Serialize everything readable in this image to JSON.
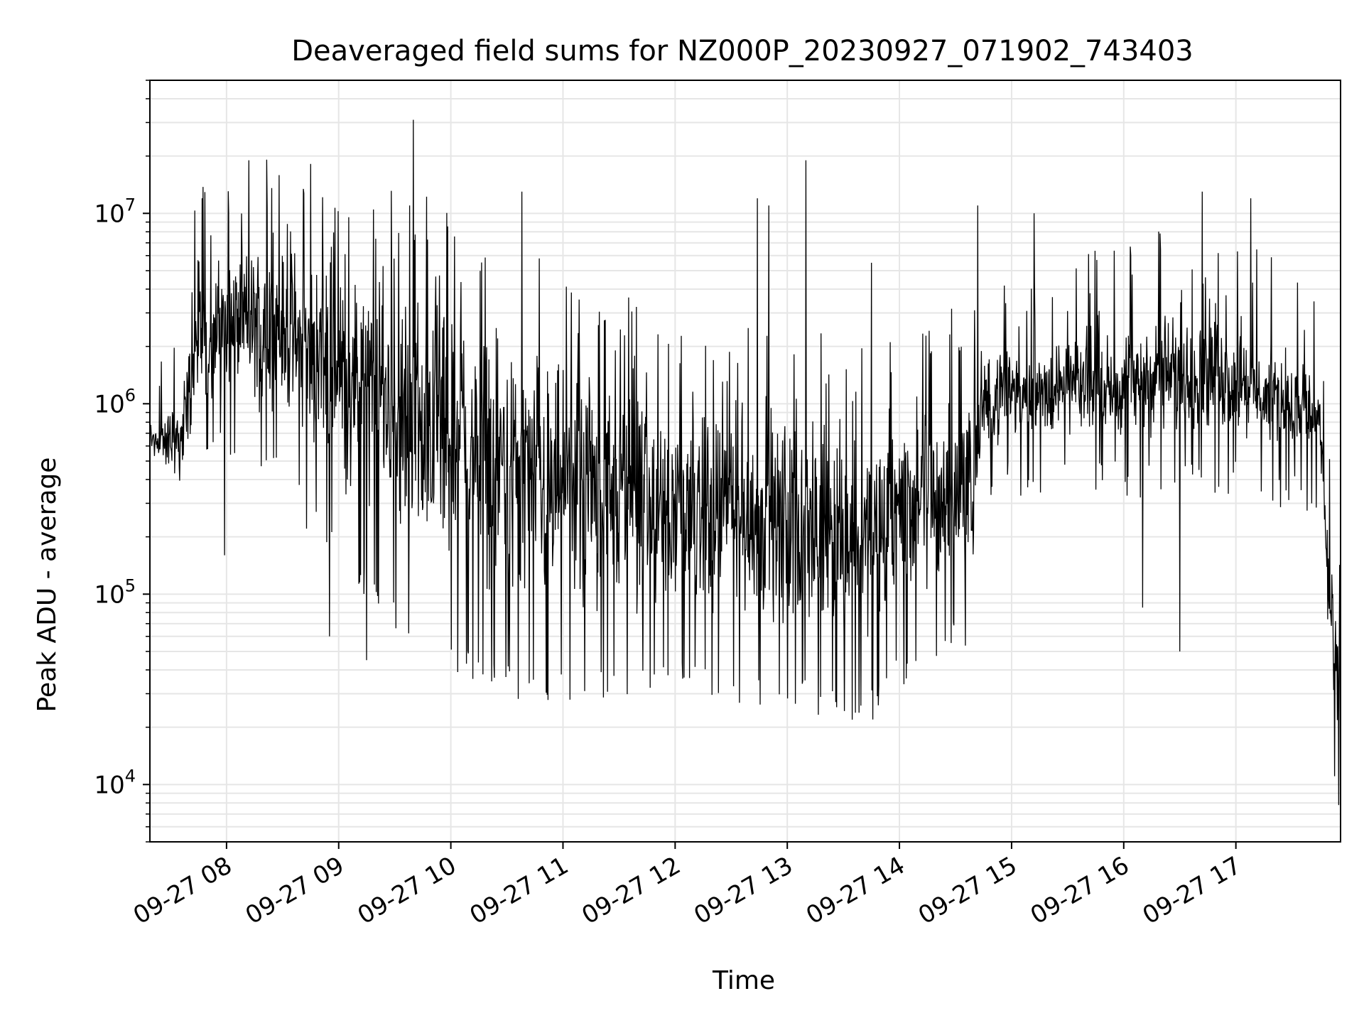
{
  "chart_data": {
    "type": "line",
    "title": "Deaveraged field sums for NZ000P_20230927_071902_743403",
    "xlabel": "Time",
    "ylabel": "Peak ADU - average",
    "yscale": "log",
    "ylim": [
      5000,
      50000000
    ],
    "xlim": [
      "2023-09-27 07:19",
      "2023-09-27 17:56"
    ],
    "grid": true,
    "line_color": "#000000",
    "grid_color": "#e6e6e6",
    "x_ticks": [
      {
        "value": "2023-09-27 08:00",
        "label": "09-27 08"
      },
      {
        "value": "2023-09-27 09:00",
        "label": "09-27 09"
      },
      {
        "value": "2023-09-27 10:00",
        "label": "09-27 10"
      },
      {
        "value": "2023-09-27 11:00",
        "label": "09-27 11"
      },
      {
        "value": "2023-09-27 12:00",
        "label": "09-27 12"
      },
      {
        "value": "2023-09-27 13:00",
        "label": "09-27 13"
      },
      {
        "value": "2023-09-27 14:00",
        "label": "09-27 14"
      },
      {
        "value": "2023-09-27 15:00",
        "label": "09-27 15"
      },
      {
        "value": "2023-09-27 16:00",
        "label": "09-27 16"
      },
      {
        "value": "2023-09-27 17:00",
        "label": "09-27 17"
      }
    ],
    "y_ticks": [
      {
        "value": 10000,
        "base": "10",
        "exp": "4"
      },
      {
        "value": 100000,
        "base": "10",
        "exp": "5"
      },
      {
        "value": 1000000,
        "base": "10",
        "exp": "6"
      },
      {
        "value": 10000000,
        "base": "10",
        "exp": "7"
      }
    ],
    "profile": [
      {
        "x": "2023-09-27 07:19",
        "lo": 460000,
        "hi": 850000
      },
      {
        "x": "2023-09-27 07:35",
        "lo": 300000,
        "hi": 1100000
      },
      {
        "x": "2023-09-27 07:45",
        "lo": 600000,
        "hi": 5000000
      },
      {
        "x": "2023-09-27 08:00",
        "lo": 800000,
        "hi": 7000000
      },
      {
        "x": "2023-09-27 08:30",
        "lo": 500000,
        "hi": 8000000
      },
      {
        "x": "2023-09-27 09:00",
        "lo": 200000,
        "hi": 6000000
      },
      {
        "x": "2023-09-27 09:30",
        "lo": 100000,
        "hi": 5000000
      },
      {
        "x": "2023-09-27 10:00",
        "lo": 60000,
        "hi": 4000000
      },
      {
        "x": "2023-09-27 10:30",
        "lo": 45000,
        "hi": 3000000
      },
      {
        "x": "2023-09-27 11:00",
        "lo": 40000,
        "hi": 2000000
      },
      {
        "x": "2023-09-27 11:30",
        "lo": 40000,
        "hi": 1500000
      },
      {
        "x": "2023-09-27 12:00",
        "lo": 45000,
        "hi": 1000000
      },
      {
        "x": "2023-09-27 13:00",
        "lo": 40000,
        "hi": 900000
      },
      {
        "x": "2023-09-27 13:40",
        "lo": 30000,
        "hi": 800000
      },
      {
        "x": "2023-09-27 14:00",
        "lo": 50000,
        "hi": 1000000
      },
      {
        "x": "2023-09-27 14:40",
        "lo": 90000,
        "hi": 1200000
      },
      {
        "x": "2023-09-27 14:45",
        "lo": 450000,
        "hi": 1800000
      },
      {
        "x": "2023-09-27 15:00",
        "lo": 500000,
        "hi": 2200000
      },
      {
        "x": "2023-09-27 16:00",
        "lo": 500000,
        "hi": 2500000
      },
      {
        "x": "2023-09-27 16:30",
        "lo": 500000,
        "hi": 3500000
      },
      {
        "x": "2023-09-27 17:00",
        "lo": 500000,
        "hi": 2800000
      },
      {
        "x": "2023-09-27 17:45",
        "lo": 400000,
        "hi": 1500000
      },
      {
        "x": "2023-09-27 17:50",
        "lo": 30000,
        "hi": 200000
      },
      {
        "x": "2023-09-27 17:56",
        "lo": 8000,
        "hi": 50000
      }
    ],
    "spikes": [
      {
        "x": "2023-09-27 07:59",
        "y": 160000
      },
      {
        "x": "2023-09-27 07:47",
        "y": 12000000
      },
      {
        "x": "2023-09-27 08:12",
        "y": 19000000
      },
      {
        "x": "2023-09-27 08:55",
        "y": 60000
      },
      {
        "x": "2023-09-27 09:15",
        "y": 45000
      },
      {
        "x": "2023-09-27 09:40",
        "y": 31000000
      },
      {
        "x": "2023-09-27 09:38",
        "y": 11000000
      },
      {
        "x": "2023-09-27 10:38",
        "y": 13000000
      },
      {
        "x": "2023-09-27 13:10",
        "y": 19000000
      },
      {
        "x": "2023-09-27 12:44",
        "y": 12000000
      },
      {
        "x": "2023-09-27 12:50",
        "y": 11000000
      },
      {
        "x": "2023-09-27 13:45",
        "y": 5500000
      },
      {
        "x": "2023-09-27 14:42",
        "y": 11000000
      },
      {
        "x": "2023-09-27 15:12",
        "y": 10000000
      },
      {
        "x": "2023-09-27 16:10",
        "y": 85000
      },
      {
        "x": "2023-09-27 16:30",
        "y": 50000
      },
      {
        "x": "2023-09-27 16:42",
        "y": 13000000
      },
      {
        "x": "2023-09-27 17:08",
        "y": 12000000
      },
      {
        "x": "2023-09-27 17:55",
        "y": 7800
      }
    ]
  }
}
